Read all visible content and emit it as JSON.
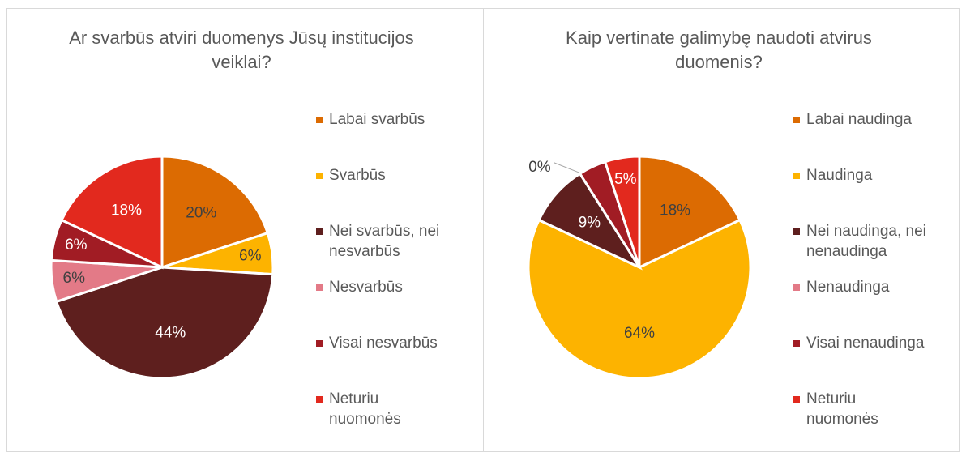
{
  "chart_data": [
    {
      "type": "pie",
      "title": "Ar svarbūs atviri duomenys Jūsų institucijos veiklai?",
      "categories": [
        "Labai svarbūs",
        "Svarbūs",
        "Nei svarbūs, nei nesvarbūs",
        "Nesvarbūs",
        "Visai nesvarbūs",
        "Neturiu nuomonės"
      ],
      "values": [
        20,
        6,
        44,
        6,
        6,
        18
      ],
      "value_labels": [
        "20%",
        "6%",
        "44%",
        "6%",
        "6%",
        "18%"
      ],
      "colors": [
        "#dc6b02",
        "#fdb300",
        "#5e1f1e",
        "#e37a87",
        "#a11c24",
        "#e2291e"
      ],
      "legend": "right"
    },
    {
      "type": "pie",
      "title": "Kaip vertinate galimybę naudoti atvirus duomenis?",
      "categories": [
        "Labai naudinga",
        "Naudinga",
        "Nei naudinga, nei nenaudinga",
        "Nenaudinga",
        "Visai nenaudinga",
        "Neturiu nuomonės"
      ],
      "values": [
        18,
        64,
        9,
        0,
        4,
        5
      ],
      "value_labels": [
        "18%",
        "64%",
        "9%",
        "0%",
        null,
        "5%"
      ],
      "colors": [
        "#dc6b02",
        "#fdb300",
        "#5e1f1e",
        "#e37a87",
        "#a11c24",
        "#e2291e"
      ],
      "legend": "right"
    }
  ]
}
